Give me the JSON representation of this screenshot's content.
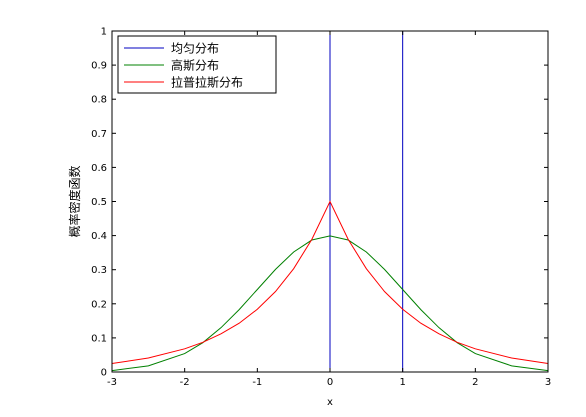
{
  "chart_data": {
    "type": "line",
    "title": "",
    "xlabel": "x",
    "ylabel": "概率密度函数",
    "xlim": [
      -3,
      3
    ],
    "ylim": [
      0,
      1
    ],
    "xticks": [
      -3,
      -2,
      -1,
      0,
      1,
      2,
      3
    ],
    "yticks": [
      0,
      0.1,
      0.2,
      0.3,
      0.4,
      0.5,
      0.6,
      0.7,
      0.8,
      0.9,
      1
    ],
    "grid": false,
    "legend": "top-left",
    "series": [
      {
        "name": "均匀分布",
        "color": "#0000c0",
        "x": [
          -3,
          0,
          0,
          0,
          1,
          1,
          1
        ],
        "y": [
          0,
          0,
          1,
          1,
          1,
          0,
          0
        ]
      },
      {
        "name": "高斯分布",
        "color": "#008000",
        "x": [
          -3,
          -2.5,
          -2,
          -1.75,
          -1.5,
          -1.25,
          -1,
          -0.75,
          -0.5,
          -0.25,
          0,
          0.25,
          0.5,
          0.75,
          1,
          1.25,
          1.5,
          1.75,
          2,
          2.5,
          3
        ],
        "y": [
          0.004,
          0.018,
          0.054,
          0.086,
          0.13,
          0.183,
          0.242,
          0.301,
          0.352,
          0.387,
          0.399,
          0.387,
          0.352,
          0.301,
          0.242,
          0.183,
          0.13,
          0.086,
          0.054,
          0.018,
          0.004
        ]
      },
      {
        "name": "拉普拉斯分布",
        "color": "#ff0000",
        "x": [
          -3,
          -2.5,
          -2,
          -1.75,
          -1.5,
          -1.25,
          -1,
          -0.75,
          -0.5,
          -0.25,
          0,
          0.25,
          0.5,
          0.75,
          1,
          1.25,
          1.5,
          1.75,
          2,
          2.5,
          3
        ],
        "y": [
          0.025,
          0.041,
          0.068,
          0.087,
          0.112,
          0.143,
          0.184,
          0.236,
          0.303,
          0.389,
          0.5,
          0.389,
          0.303,
          0.236,
          0.184,
          0.143,
          0.112,
          0.087,
          0.068,
          0.041,
          0.025
        ]
      }
    ]
  }
}
